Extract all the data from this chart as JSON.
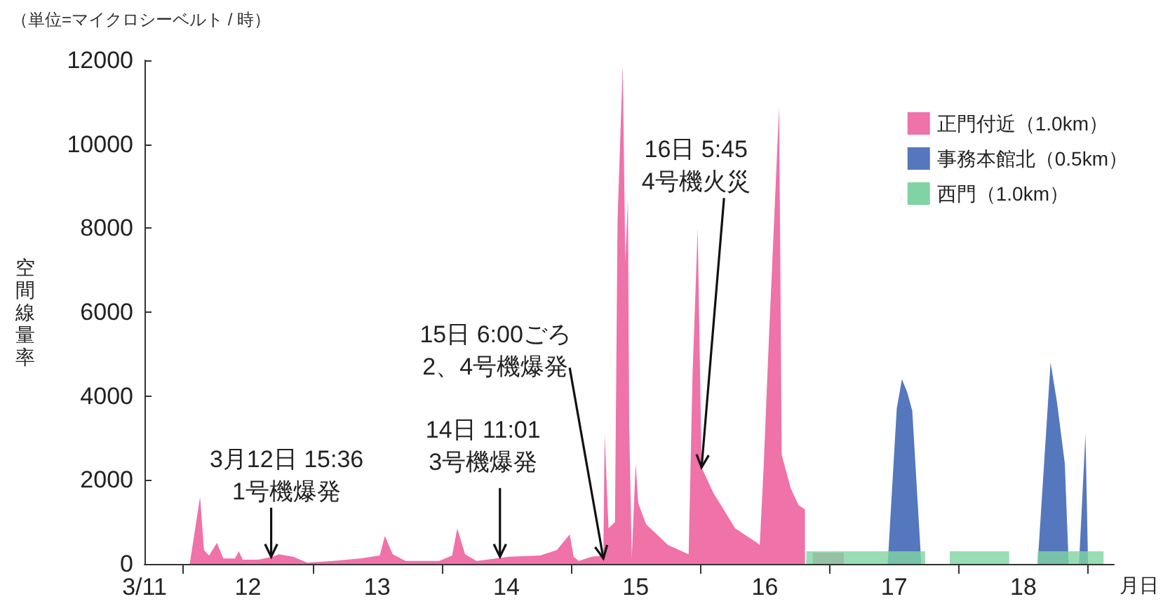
{
  "chart_data": {
    "type": "area",
    "xlabel": "月日",
    "ylabel": "空間線量率",
    "annotations": [
      "（単位=マイクロシーベルト / 時）",
      {
        "text": "3月12日 15:36\n1号機爆発",
        "x": 12.68,
        "y": 170
      },
      {
        "text": "14日 11:01\n3号機爆発",
        "x": 14.45,
        "y": 170
      },
      {
        "text": "15日 6:00ごろ\n2、4号機爆発",
        "x": 15.25,
        "y": 130
      },
      {
        "text": "16日 5:45\n4号機火災",
        "x": 16.01,
        "y": 2300
      }
    ],
    "xlim": [
      11.7,
      19.2
    ],
    "xticks": [
      {
        "value": 11.7,
        "label": "3/11"
      },
      {
        "value": 12,
        "label": null
      },
      {
        "value": 12.5,
        "label": "12"
      },
      {
        "value": 13,
        "label": null
      },
      {
        "value": 13.5,
        "label": "13"
      },
      {
        "value": 14,
        "label": null
      },
      {
        "value": 14.5,
        "label": "14"
      },
      {
        "value": 15,
        "label": null
      },
      {
        "value": 15.5,
        "label": "15"
      },
      {
        "value": 16,
        "label": null
      },
      {
        "value": 16.5,
        "label": "16"
      },
      {
        "value": 17,
        "label": null
      },
      {
        "value": 17.5,
        "label": "17"
      },
      {
        "value": 18,
        "label": null
      },
      {
        "value": 18.5,
        "label": "18"
      },
      {
        "value": 19,
        "label": null
      }
    ],
    "ylim": [
      0,
      12000
    ],
    "yticks": [
      0,
      2000,
      4000,
      6000,
      8000,
      10000,
      12000
    ],
    "legend": "top right",
    "series": [
      {
        "name": "正門付近（1.0km）",
        "color": "#ef72a9",
        "x": [
          12.05,
          12.13,
          12.16,
          12.2,
          12.26,
          12.31,
          12.4,
          12.43,
          12.46,
          12.58,
          12.69,
          12.74,
          12.85,
          12.96,
          13.16,
          13.37,
          13.52,
          13.56,
          13.62,
          13.72,
          13.98,
          14.08,
          14.12,
          14.18,
          14.27,
          14.42,
          14.52,
          14.76,
          14.89,
          14.99,
          15.02,
          15.06,
          15.16,
          15.25,
          15.26,
          15.29,
          15.34,
          15.36,
          15.4,
          15.42,
          15.44,
          15.45,
          15.47,
          15.5,
          15.52,
          15.58,
          15.75,
          15.91,
          15.94,
          15.98,
          16.01,
          16.1,
          16.27,
          16.44,
          16.46,
          16.49,
          16.53,
          16.61,
          16.63,
          16.7,
          16.76,
          16.81,
          16.81,
          16.87,
          16.87,
          17.11,
          17.11
        ],
        "values": [
          0,
          1600,
          330,
          200,
          500,
          130,
          130,
          300,
          100,
          100,
          170,
          230,
          170,
          30,
          70,
          130,
          200,
          670,
          230,
          70,
          70,
          200,
          850,
          230,
          70,
          130,
          170,
          200,
          330,
          700,
          170,
          70,
          170,
          200,
          3100,
          850,
          1000,
          8200,
          11900,
          7200,
          8700,
          3300,
          150,
          2400,
          1450,
          950,
          450,
          230,
          4500,
          8000,
          2300,
          1700,
          850,
          500,
          450,
          2300,
          5300,
          10900,
          2600,
          1800,
          1400,
          1300,
          0,
          0,
          270,
          270,
          0
        ]
      },
      {
        "name": "事務本館北（0.5km）",
        "color": "#5577bd",
        "x": [
          17.45,
          17.52,
          17.56,
          17.6,
          17.64,
          17.71,
          18.61,
          18.71,
          18.76,
          18.82,
          18.85,
          18.93,
          18.98,
          19.0
        ],
        "values": [
          0,
          3700,
          4400,
          4100,
          3650,
          0,
          0,
          4800,
          3850,
          2400,
          0,
          0,
          3100,
          0
        ]
      },
      {
        "name": "西門（1.0km）",
        "color": "#80d4a3",
        "x": [
          16.82,
          16.82,
          17.74,
          17.74,
          17.93,
          17.93,
          18.39,
          18.39,
          18.61,
          18.61,
          19.12,
          19.12
        ],
        "values": [
          0,
          300,
          300,
          0,
          0,
          300,
          300,
          0,
          0,
          300,
          300,
          0
        ]
      }
    ]
  }
}
